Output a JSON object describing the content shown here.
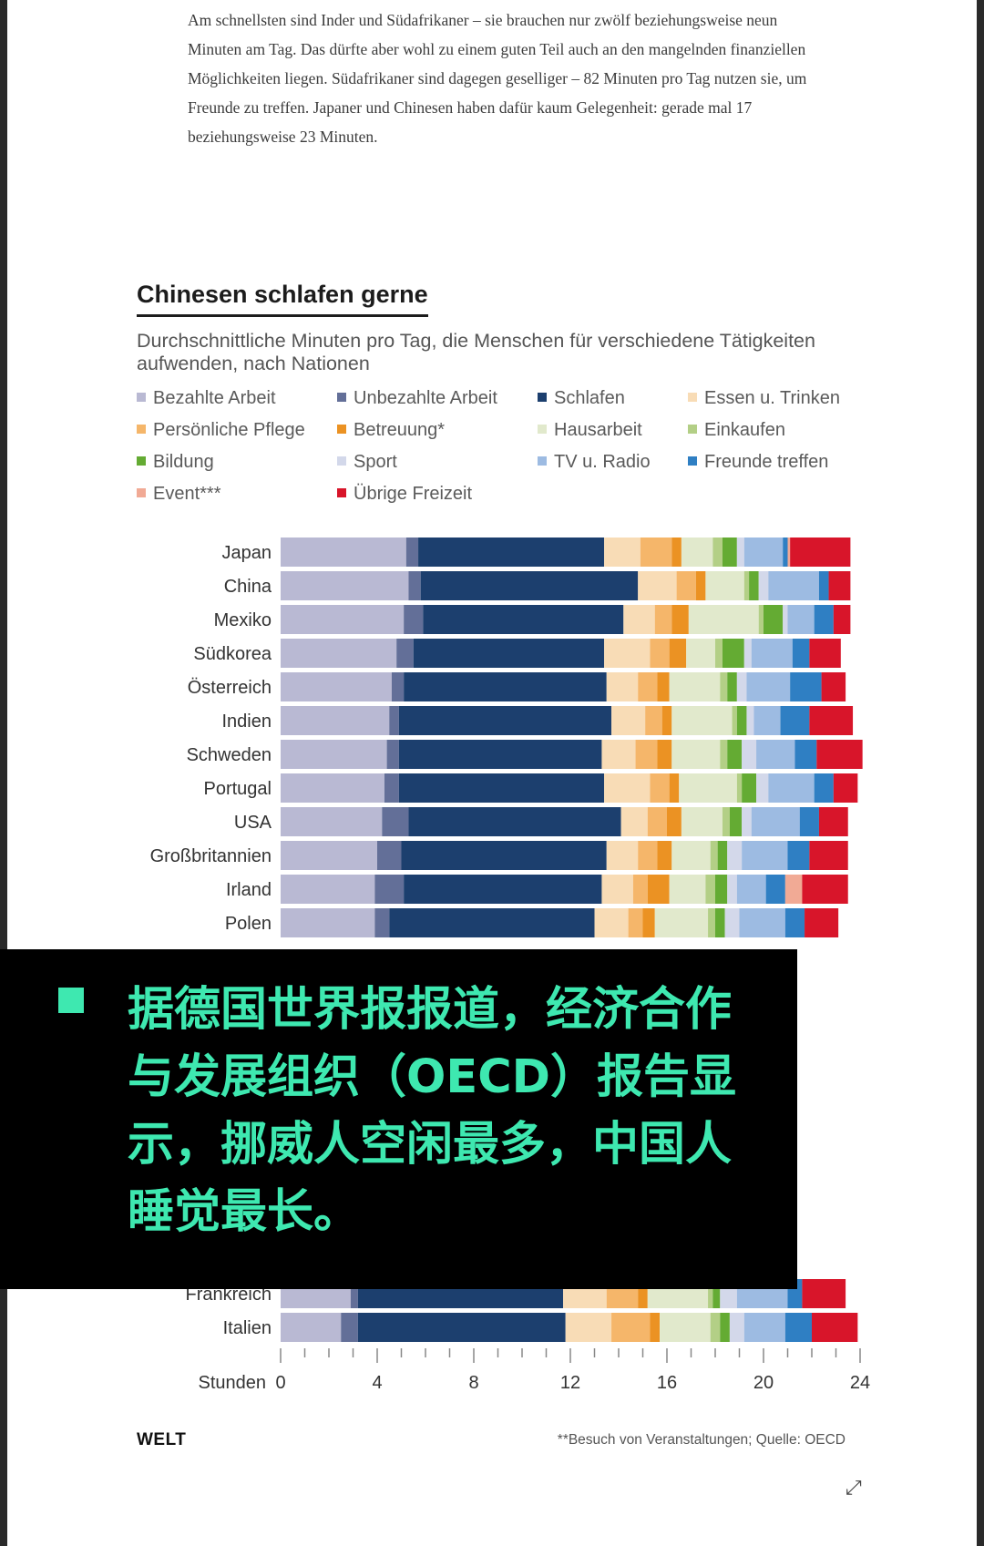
{
  "article": {
    "text": "Am schnellsten sind Inder und Südafrikaner – sie brauchen nur zwölf beziehungsweise neun Minuten am Tag. Das dürfte aber wohl zu einem guten Teil auch an den mangelnden finanziellen Möglichkeiten liegen. Südafrikaner sind dagegen geselliger – 82 Minuten pro Tag nutzen sie, um Freunde zu treffen. Japaner und Chinesen haben dafür kaum Gelegenheit: gerade mal 17 beziehungsweise 23 Minuten."
  },
  "brand": "WELT",
  "footnote": "**Besuch von Veranstaltungen; Quelle: OECD",
  "overlay": {
    "text": "据德国世界报报道，经济合作与发展组织（OECD）报告显示，挪威人空闲最多，中国人睡觉最长。"
  },
  "colors": {
    "Bezahlte Arbeit": "#b9b9d3",
    "Unbezahlte Arbeit": "#636f98",
    "Schlafen": "#1c3f6e",
    "Essen u. Trinken": "#f8dcb6",
    "Persönliche Pflege": "#f5b66a",
    "Betreuung*": "#eb9223",
    "Hausarbeit": "#e1e9cc",
    "Einkaufen": "#b3cf86",
    "Bildung": "#64ab33",
    "Sport": "#d3d8ea",
    "TV u. Radio": "#9dbbe2",
    "Freunde treffen": "#2f7fc3",
    "Event***": "#f1aa95",
    "Übrige Freizeit": "#d8152a"
  },
  "chart_data": {
    "type": "bar",
    "orientation": "horizontal",
    "stacked": true,
    "title": "Chinesen schlafen gerne",
    "subtitle": "Durchschnittliche Minuten pro Tag, die Menschen für verschiedene Tätigkeiten aufwenden, nach Nationen",
    "xlabel": "Stunden",
    "xlim": [
      0,
      24
    ],
    "xticks": [
      0,
      4,
      8,
      12,
      16,
      20,
      24
    ],
    "legend_placement": "top",
    "legend": [
      "Bezahlte Arbeit",
      "Unbezahlte Arbeit",
      "Schlafen",
      "Essen u. Trinken",
      "Persönliche Pflege",
      "Betreuung*",
      "Hausarbeit",
      "Einkaufen",
      "Bildung",
      "Sport",
      "TV u. Radio",
      "Freunde treffen",
      "Event***",
      "Übrige Freizeit"
    ],
    "legend_columns": [
      0,
      1,
      2,
      3,
      0,
      1,
      2,
      3,
      0,
      1,
      2,
      3,
      0,
      1
    ],
    "legend_rows": [
      0,
      0,
      0,
      0,
      1,
      1,
      1,
      1,
      2,
      2,
      2,
      2,
      3,
      3
    ],
    "series_order": [
      "Bezahlte Arbeit",
      "Unbezahlte Arbeit",
      "Schlafen",
      "Essen u. Trinken",
      "Persönliche Pflege",
      "Betreuung*",
      "Hausarbeit",
      "Einkaufen",
      "Bildung",
      "Sport",
      "TV u. Radio",
      "Freunde treffen",
      "Event***",
      "Übrige Freizeit"
    ],
    "rows": [
      {
        "label": "Japan",
        "segments": [
          5.2,
          0.5,
          7.7,
          1.5,
          1.3,
          0.4,
          1.3,
          0.4,
          0.6,
          0.3,
          1.6,
          0.2,
          0.1,
          2.5
        ]
      },
      {
        "label": "China",
        "segments": [
          5.3,
          0.5,
          9.0,
          1.6,
          0.8,
          0.4,
          1.6,
          0.2,
          0.4,
          0.4,
          2.1,
          0.4,
          0.0,
          0.9
        ]
      },
      {
        "label": "Mexiko",
        "segments": [
          5.1,
          0.8,
          8.3,
          1.3,
          0.7,
          0.7,
          2.9,
          0.2,
          0.8,
          0.2,
          1.1,
          0.8,
          0.0,
          0.7
        ]
      },
      {
        "label": "Südkorea",
        "segments": [
          4.8,
          0.7,
          7.9,
          1.9,
          0.8,
          0.7,
          1.2,
          0.3,
          0.9,
          0.3,
          1.7,
          0.7,
          0.0,
          1.3
        ]
      },
      {
        "label": "Österreich",
        "segments": [
          4.6,
          0.5,
          8.4,
          1.3,
          0.8,
          0.5,
          2.1,
          0.3,
          0.4,
          0.4,
          1.8,
          1.3,
          0.0,
          1.0
        ]
      },
      {
        "label": "Indien",
        "segments": [
          4.5,
          0.4,
          8.8,
          1.4,
          0.7,
          0.4,
          2.5,
          0.2,
          0.4,
          0.3,
          1.1,
          1.2,
          0.0,
          1.8
        ]
      },
      {
        "label": "Schweden",
        "segments": [
          4.4,
          0.5,
          8.4,
          1.4,
          0.9,
          0.6,
          2.0,
          0.3,
          0.6,
          0.6,
          1.6,
          0.9,
          0.0,
          1.9
        ]
      },
      {
        "label": "Portugal",
        "segments": [
          4.3,
          0.6,
          8.5,
          1.9,
          0.8,
          0.4,
          2.4,
          0.2,
          0.6,
          0.5,
          1.9,
          0.8,
          0.0,
          1.0
        ]
      },
      {
        "label": "USA",
        "segments": [
          4.2,
          1.1,
          8.8,
          1.1,
          0.8,
          0.6,
          1.7,
          0.3,
          0.5,
          0.4,
          2.0,
          0.8,
          0.0,
          1.2
        ]
      },
      {
        "label": "Großbritannien",
        "segments": [
          4.0,
          1.0,
          8.5,
          1.3,
          0.8,
          0.6,
          1.6,
          0.3,
          0.4,
          0.6,
          1.9,
          0.9,
          0.0,
          1.6
        ]
      },
      {
        "label": "Irland",
        "segments": [
          3.9,
          1.2,
          8.2,
          1.3,
          0.6,
          0.9,
          1.5,
          0.4,
          0.5,
          0.4,
          1.2,
          0.8,
          0.7,
          1.9
        ]
      },
      {
        "label": "Polen",
        "segments": [
          3.9,
          0.6,
          8.5,
          1.4,
          0.6,
          0.5,
          2.2,
          0.3,
          0.4,
          0.6,
          1.9,
          0.8,
          0.0,
          1.4
        ]
      },
      {
        "label": "Frankreich",
        "segments": [
          2.9,
          0.3,
          8.5,
          1.8,
          1.3,
          0.4,
          2.5,
          0.2,
          0.3,
          0.7,
          2.1,
          0.6,
          0.0,
          1.8
        ]
      },
      {
        "label": "Italien",
        "segments": [
          2.5,
          0.7,
          8.6,
          1.9,
          1.6,
          0.4,
          2.1,
          0.4,
          0.4,
          0.6,
          1.7,
          1.1,
          0.0,
          1.9
        ]
      }
    ],
    "row_slots": [
      0,
      1,
      2,
      3,
      4,
      5,
      6,
      7,
      8,
      9,
      10,
      11,
      22,
      23
    ]
  }
}
